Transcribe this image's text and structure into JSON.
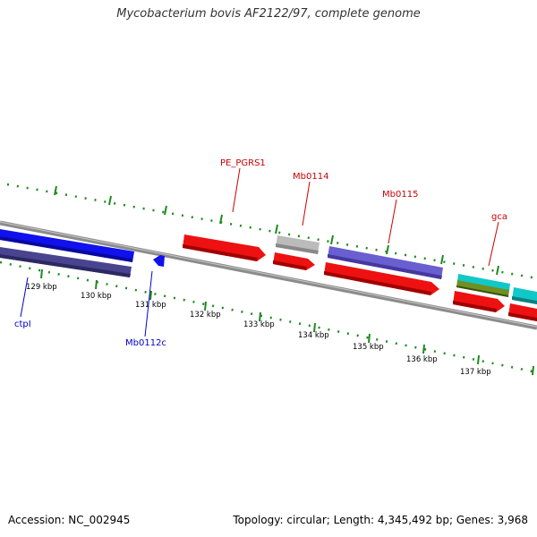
{
  "title": "Mycobacterium bovis AF2122/97, complete genome",
  "footer": {
    "accession": "Accession: NC_002945",
    "summary": "Topology: circular; Length: 4,345,492 bp; Genes: 3,968"
  },
  "colors": {
    "backbone": "#8c8c8c",
    "tick": "#1f8a1f",
    "forward_label": "#cc0000",
    "reverse_label": "#0000cc",
    "red_feature": "#ee1111",
    "blue_feature": "#1111ee",
    "navy_feature": "#4a4490",
    "grey_feature": "#bbbbbb",
    "violet_feature": "#6a5fd0",
    "cyan_feature": "#11c8c8",
    "olive_feature": "#6f8f20"
  },
  "scale": {
    "unit": "kbp",
    "tick_labels": [
      "129 kbp",
      "130 kbp",
      "131 kbp",
      "132 kbp",
      "133 kbp",
      "134 kbp",
      "135 kbp",
      "136 kbp",
      "137 kbp"
    ]
  },
  "gene_labels": {
    "forward": [
      "PE_PGRS1",
      "Mb0114",
      "Mb0115",
      "gca"
    ],
    "reverse": [
      "ctpI",
      "Mb0112c"
    ]
  }
}
